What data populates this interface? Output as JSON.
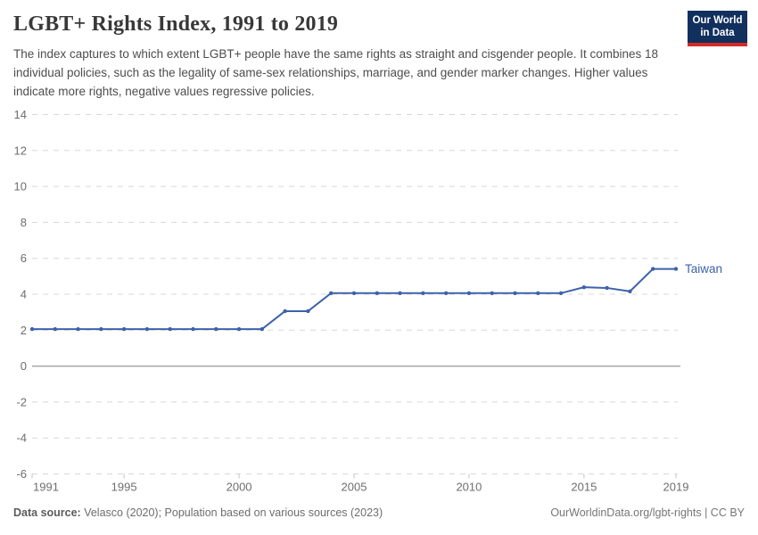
{
  "header": {
    "title": "LGBT+ Rights Index, 1991 to 2019",
    "subtitle": "The index captures to which extent LGBT+ people have the same rights as straight and cisgender people. It combines 18 individual policies, such as the legality of same-sex relationships, marriage, and gender marker changes. Higher values indicate more rights, negative values regressive policies.",
    "logo": {
      "line1": "Our World",
      "line2": "in Data",
      "bg_color": "#12305e",
      "accent_color": "#d42b27"
    }
  },
  "chart_data": {
    "type": "line",
    "title": "LGBT+ Rights Index, 1991 to 2019",
    "xlabel": "",
    "ylabel": "",
    "xlim": [
      1991,
      2019
    ],
    "ylim": [
      -6,
      14
    ],
    "xticks": [
      1991,
      1995,
      2000,
      2005,
      2010,
      2015,
      2019
    ],
    "yticks": [
      14,
      12,
      10,
      8,
      6,
      4,
      2,
      0,
      -2,
      -4,
      -6
    ],
    "grid": "dashed horizontal gridlines, solid zero line",
    "legend_position": "label at end of line",
    "x": [
      1991,
      1992,
      1993,
      1994,
      1995,
      1996,
      1997,
      1998,
      1999,
      2000,
      2001,
      2002,
      2003,
      2004,
      2005,
      2006,
      2007,
      2008,
      2009,
      2010,
      2011,
      2012,
      2013,
      2014,
      2015,
      2016,
      2017,
      2018,
      2019
    ],
    "series": [
      {
        "name": "Taiwan",
        "values": [
          2.06,
          2.06,
          2.06,
          2.06,
          2.06,
          2.06,
          2.06,
          2.06,
          2.06,
          2.06,
          2.06,
          3.06,
          3.06,
          4.06,
          4.06,
          4.06,
          4.06,
          4.06,
          4.06,
          4.06,
          4.06,
          4.06,
          4.06,
          4.06,
          4.39,
          4.35,
          4.16,
          5.41,
          5.41
        ]
      }
    ],
    "colors": {
      "line": "#3d62a9",
      "gridline": "#d8d8d8",
      "zero_line": "#a6a6a6",
      "tick_label": "#6e6e6e"
    }
  },
  "footer": {
    "source_label": "Data source:",
    "source_text": " Velasco (2020); Population based on various sources (2023)",
    "credit": "OurWorldinData.org/lgbt-rights | CC BY"
  }
}
